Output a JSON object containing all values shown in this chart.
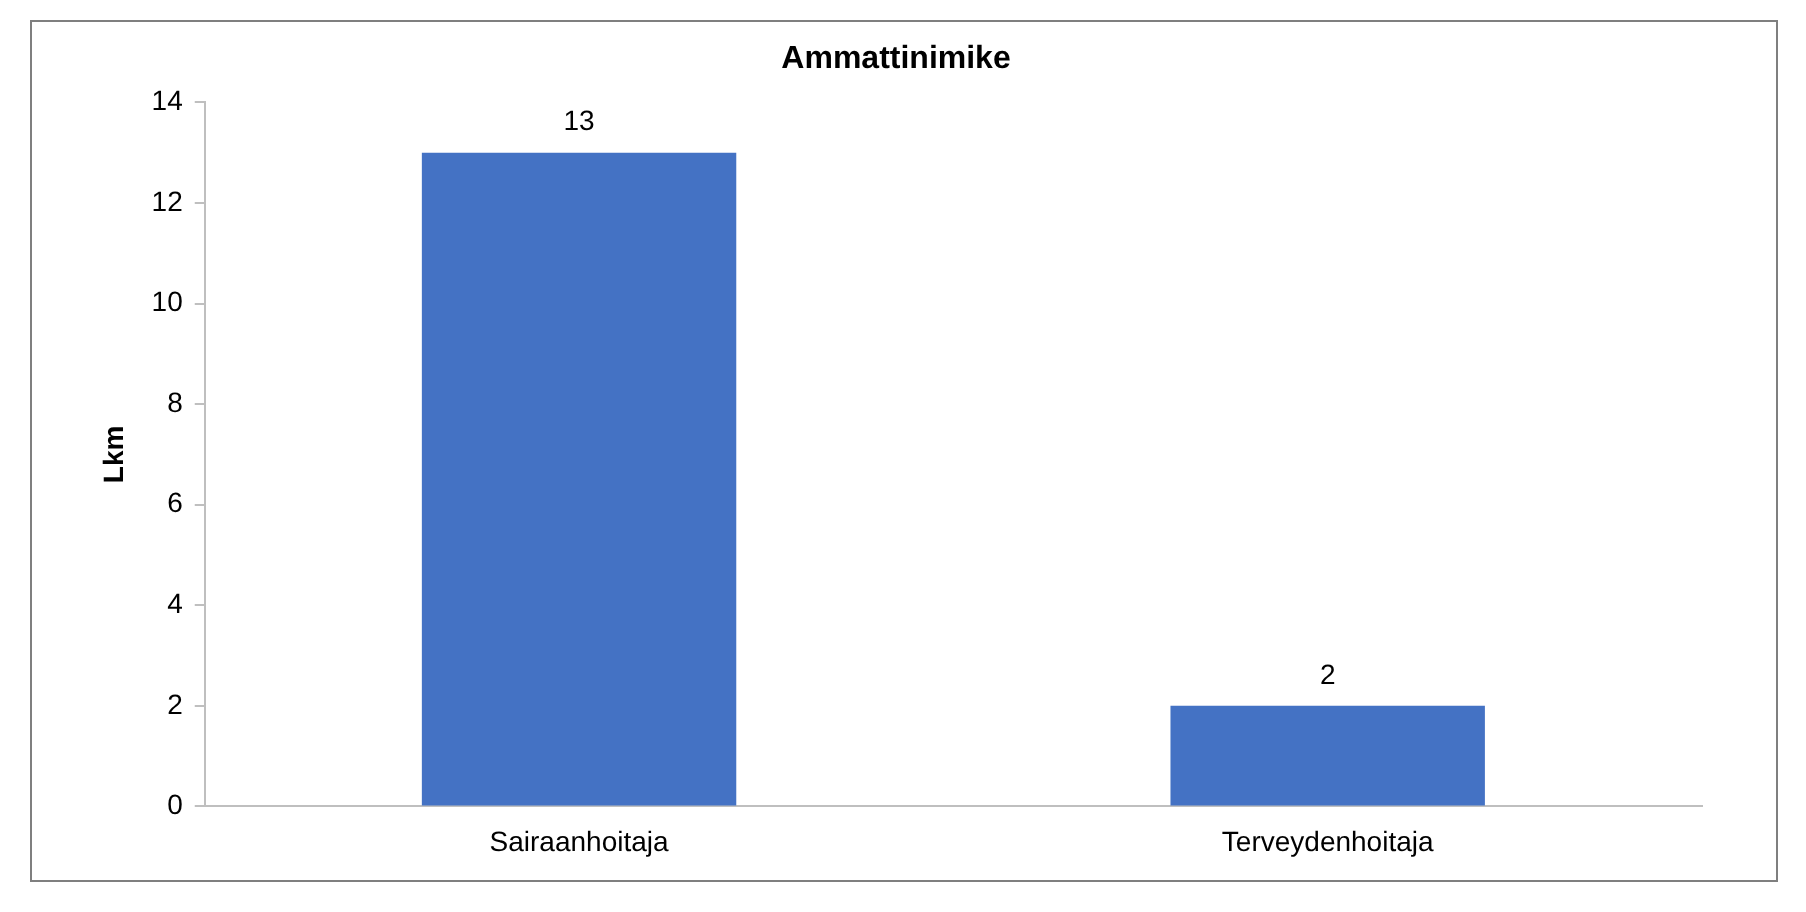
{
  "chart_data": {
    "type": "bar",
    "title": "Ammattinimike",
    "ylabel": "Lkm",
    "categories": [
      "Sairaanhoitaja",
      "Terveydenhoitaja"
    ],
    "values": [
      13,
      2
    ],
    "color": "#4472c4",
    "ylim": [
      0,
      14
    ],
    "yticks": [
      0,
      2,
      4,
      6,
      8,
      10,
      12,
      14
    ],
    "grid": false,
    "legend": false,
    "data_labels": true
  }
}
